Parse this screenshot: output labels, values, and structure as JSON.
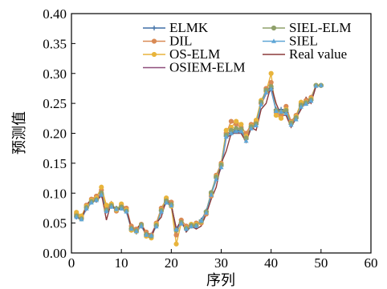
{
  "chart_data": {
    "type": "line",
    "title": "",
    "xlabel": "序列",
    "ylabel": "预测值",
    "xlim": [
      0,
      60
    ],
    "ylim": [
      0,
      0.4
    ],
    "xticks": [
      0,
      10,
      20,
      30,
      40,
      50,
      60
    ],
    "yticks": [
      0.0,
      0.05,
      0.1,
      0.15,
      0.2,
      0.25,
      0.3,
      0.35,
      0.4
    ],
    "xtick_labels": [
      "0",
      "10",
      "20",
      "30",
      "40",
      "50",
      "60"
    ],
    "ytick_labels": [
      "0.00",
      "0.05",
      "0.10",
      "0.15",
      "0.20",
      "0.25",
      "0.30",
      "0.35",
      "0.40"
    ],
    "grid": false,
    "legend_position": "top-right",
    "x": [
      1,
      2,
      3,
      4,
      5,
      6,
      7,
      8,
      9,
      10,
      11,
      12,
      13,
      14,
      15,
      16,
      17,
      18,
      19,
      20,
      21,
      22,
      23,
      24,
      25,
      26,
      27,
      28,
      29,
      30,
      31,
      32,
      33,
      34,
      35,
      36,
      37,
      38,
      39,
      40,
      41,
      42,
      43,
      44,
      45,
      46,
      47,
      48,
      49,
      50
    ],
    "series": [
      {
        "name": "ELMK",
        "color": "#3f6fa6",
        "marker": "plus",
        "values": [
          0.06,
          0.058,
          0.075,
          0.085,
          0.09,
          0.098,
          0.07,
          0.078,
          0.075,
          0.075,
          0.07,
          0.04,
          0.035,
          0.045,
          0.03,
          0.03,
          0.045,
          0.07,
          0.085,
          0.08,
          0.04,
          0.05,
          0.04,
          0.045,
          0.045,
          0.055,
          0.07,
          0.1,
          0.125,
          0.145,
          0.195,
          0.2,
          0.205,
          0.205,
          0.19,
          0.21,
          0.215,
          0.25,
          0.27,
          0.275,
          0.24,
          0.24,
          0.235,
          0.215,
          0.225,
          0.245,
          0.25,
          0.255,
          0.28,
          0.28
        ]
      },
      {
        "name": "DIL",
        "color": "#d98a55",
        "marker": "circle",
        "values": [
          0.065,
          0.06,
          0.08,
          0.09,
          0.095,
          0.105,
          0.075,
          0.08,
          0.07,
          0.08,
          0.075,
          0.045,
          0.04,
          0.048,
          0.035,
          0.03,
          0.05,
          0.075,
          0.09,
          0.085,
          0.03,
          0.055,
          0.045,
          0.045,
          0.05,
          0.05,
          0.065,
          0.095,
          0.13,
          0.15,
          0.2,
          0.22,
          0.215,
          0.21,
          0.2,
          0.215,
          0.22,
          0.25,
          0.275,
          0.285,
          0.235,
          0.23,
          0.245,
          0.22,
          0.23,
          0.25,
          0.255,
          0.26,
          0.28,
          0.28
        ]
      },
      {
        "name": "OS-ELM",
        "color": "#e8b43c",
        "marker": "circle",
        "values": [
          0.068,
          0.062,
          0.078,
          0.088,
          0.092,
          0.11,
          0.08,
          0.082,
          0.072,
          0.082,
          0.072,
          0.038,
          0.036,
          0.046,
          0.028,
          0.025,
          0.048,
          0.072,
          0.092,
          0.078,
          0.015,
          0.05,
          0.042,
          0.048,
          0.048,
          0.052,
          0.068,
          0.098,
          0.128,
          0.148,
          0.205,
          0.21,
          0.22,
          0.215,
          0.195,
          0.212,
          0.222,
          0.255,
          0.27,
          0.3,
          0.23,
          0.225,
          0.24,
          0.218,
          0.228,
          0.252,
          0.252,
          0.258,
          0.28,
          0.28
        ]
      },
      {
        "name": "OSIEM-ELM",
        "color": "#8e4d7a",
        "marker": "none",
        "values": [
          0.058,
          0.06,
          0.072,
          0.085,
          0.088,
          0.095,
          0.072,
          0.076,
          0.073,
          0.074,
          0.068,
          0.042,
          0.038,
          0.044,
          0.032,
          0.032,
          0.046,
          0.068,
          0.084,
          0.078,
          0.042,
          0.048,
          0.042,
          0.044,
          0.046,
          0.054,
          0.068,
          0.098,
          0.122,
          0.142,
          0.192,
          0.198,
          0.202,
          0.202,
          0.188,
          0.208,
          0.212,
          0.248,
          0.266,
          0.272,
          0.238,
          0.238,
          0.232,
          0.214,
          0.224,
          0.244,
          0.248,
          0.252,
          0.278,
          0.28
        ]
      },
      {
        "name": "SIEL-ELM",
        "color": "#8fa06a",
        "marker": "circle",
        "values": [
          0.062,
          0.057,
          0.076,
          0.086,
          0.089,
          0.1,
          0.072,
          0.079,
          0.074,
          0.077,
          0.07,
          0.041,
          0.037,
          0.047,
          0.031,
          0.028,
          0.046,
          0.071,
          0.087,
          0.081,
          0.038,
          0.051,
          0.041,
          0.046,
          0.046,
          0.053,
          0.069,
          0.101,
          0.127,
          0.147,
          0.197,
          0.205,
          0.208,
          0.207,
          0.192,
          0.211,
          0.216,
          0.252,
          0.272,
          0.278,
          0.238,
          0.236,
          0.238,
          0.217,
          0.226,
          0.247,
          0.251,
          0.256,
          0.28,
          0.28
        ]
      },
      {
        "name": "SIEL",
        "color": "#5fa6d6",
        "marker": "triangle",
        "values": [
          0.06,
          0.056,
          0.074,
          0.084,
          0.088,
          0.097,
          0.07,
          0.077,
          0.073,
          0.074,
          0.069,
          0.04,
          0.036,
          0.045,
          0.03,
          0.029,
          0.044,
          0.069,
          0.084,
          0.079,
          0.039,
          0.049,
          0.04,
          0.044,
          0.045,
          0.054,
          0.067,
          0.097,
          0.123,
          0.143,
          0.194,
          0.2,
          0.203,
          0.203,
          0.187,
          0.208,
          0.213,
          0.248,
          0.268,
          0.274,
          0.237,
          0.236,
          0.233,
          0.214,
          0.223,
          0.244,
          0.249,
          0.254,
          0.279,
          0.28
        ]
      },
      {
        "name": "Real value",
        "color": "#8b3a3a",
        "marker": "none",
        "values": [
          0.06,
          0.055,
          0.08,
          0.09,
          0.085,
          0.1,
          0.055,
          0.085,
          0.068,
          0.078,
          0.075,
          0.04,
          0.04,
          0.05,
          0.028,
          0.025,
          0.05,
          0.06,
          0.09,
          0.08,
          0.04,
          0.055,
          0.035,
          0.045,
          0.04,
          0.045,
          0.065,
          0.09,
          0.11,
          0.15,
          0.17,
          0.2,
          0.2,
          0.2,
          0.185,
          0.21,
          0.205,
          0.24,
          0.25,
          0.28,
          0.25,
          0.23,
          0.23,
          0.21,
          0.225,
          0.24,
          0.26,
          0.25,
          0.28,
          0.28
        ]
      }
    ]
  }
}
